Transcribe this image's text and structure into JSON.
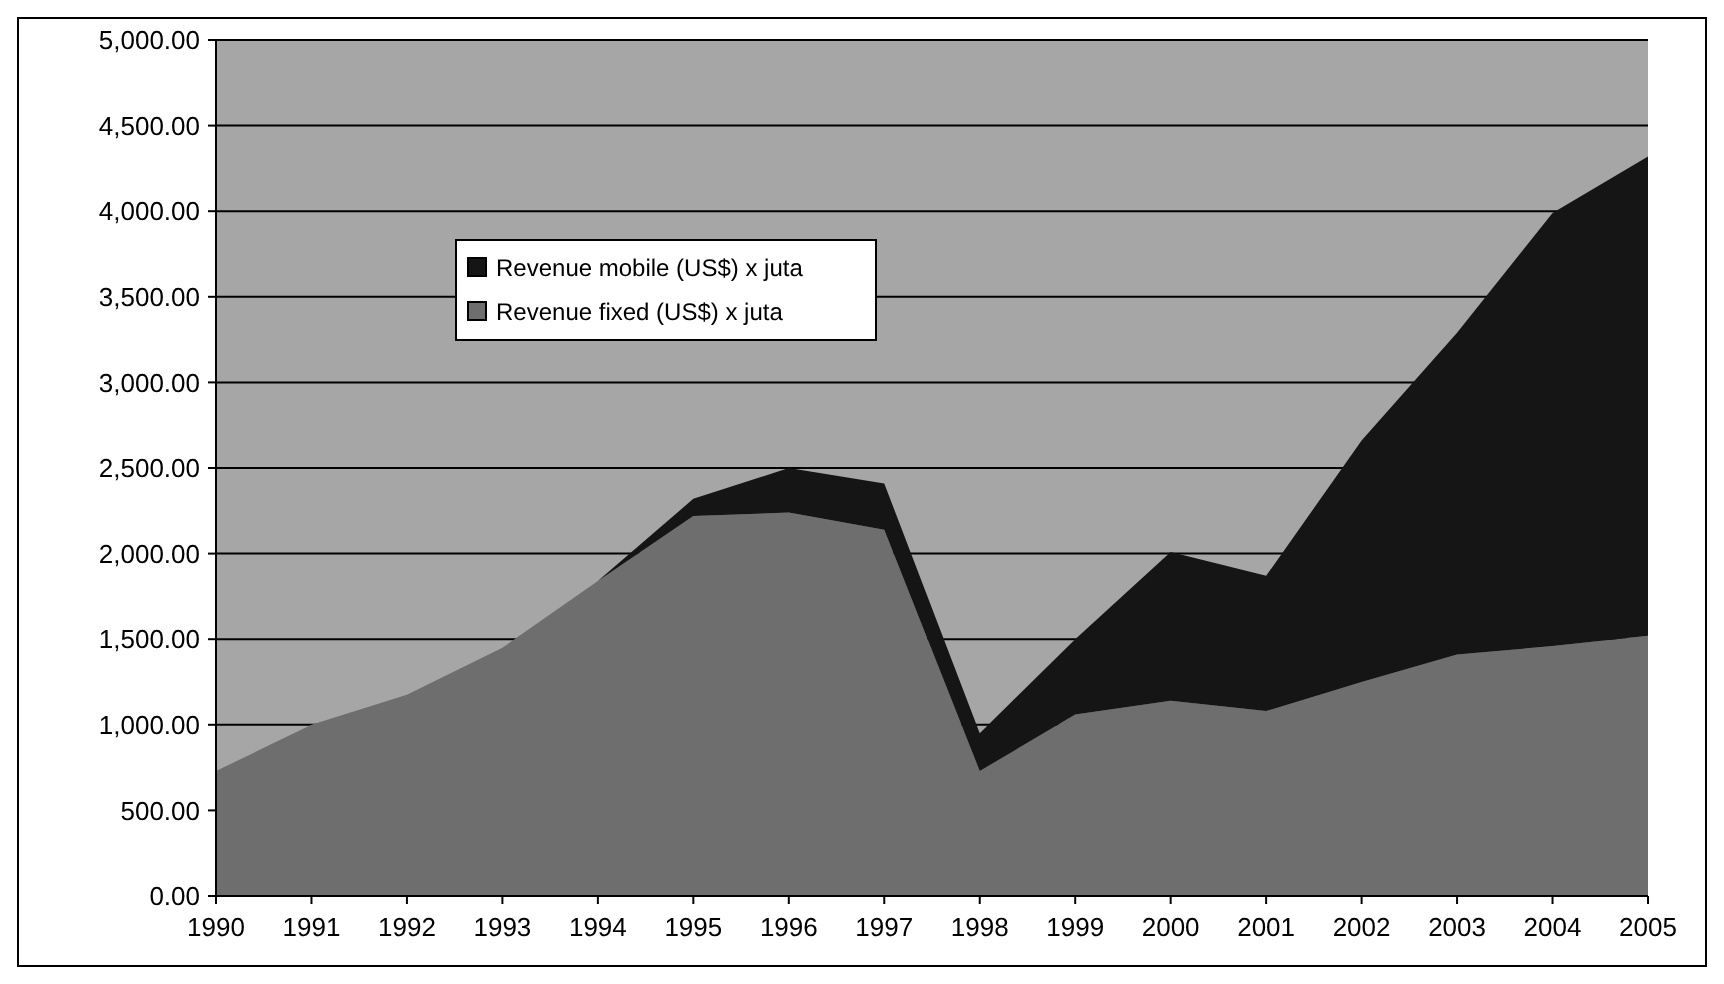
{
  "chart_data": {
    "type": "area",
    "stacked": true,
    "categories": [
      "1990",
      "1991",
      "1992",
      "1993",
      "1994",
      "1995",
      "1996",
      "1997",
      "1998",
      "1999",
      "2000",
      "2001",
      "2002",
      "2003",
      "2004",
      "2005"
    ],
    "series": [
      {
        "name": "Revenue fixed (US$) x juta",
        "color": "#6e6e6e",
        "values": [
          730,
          1000,
          1175,
          1450,
          1840,
          2220,
          2240,
          2140,
          730,
          1060,
          1140,
          1080,
          1250,
          1410,
          1460,
          1520
        ]
      },
      {
        "name": "Revenue mobile (US$) x juta",
        "color": "#151515",
        "values": [
          0,
          0,
          0,
          0,
          0,
          100,
          260,
          270,
          220,
          440,
          870,
          790,
          1410,
          1880,
          2530,
          2800
        ]
      }
    ],
    "ylim": [
      0,
      5000
    ],
    "yticks": [
      {
        "value": 0,
        "label": "0.00"
      },
      {
        "value": 500,
        "label": "500.00"
      },
      {
        "value": 1000,
        "label": "1,000.00"
      },
      {
        "value": 1500,
        "label": "1,500.00"
      },
      {
        "value": 2000,
        "label": "2,000.00"
      },
      {
        "value": 2500,
        "label": "2,500.00"
      },
      {
        "value": 3000,
        "label": "3,000.00"
      },
      {
        "value": 3500,
        "label": "3,500.00"
      },
      {
        "value": 4000,
        "label": "4,000.00"
      },
      {
        "value": 4500,
        "label": "4,500.00"
      },
      {
        "value": 5000,
        "label": "5,000.00"
      }
    ],
    "grid": "y",
    "legend": "top left"
  }
}
